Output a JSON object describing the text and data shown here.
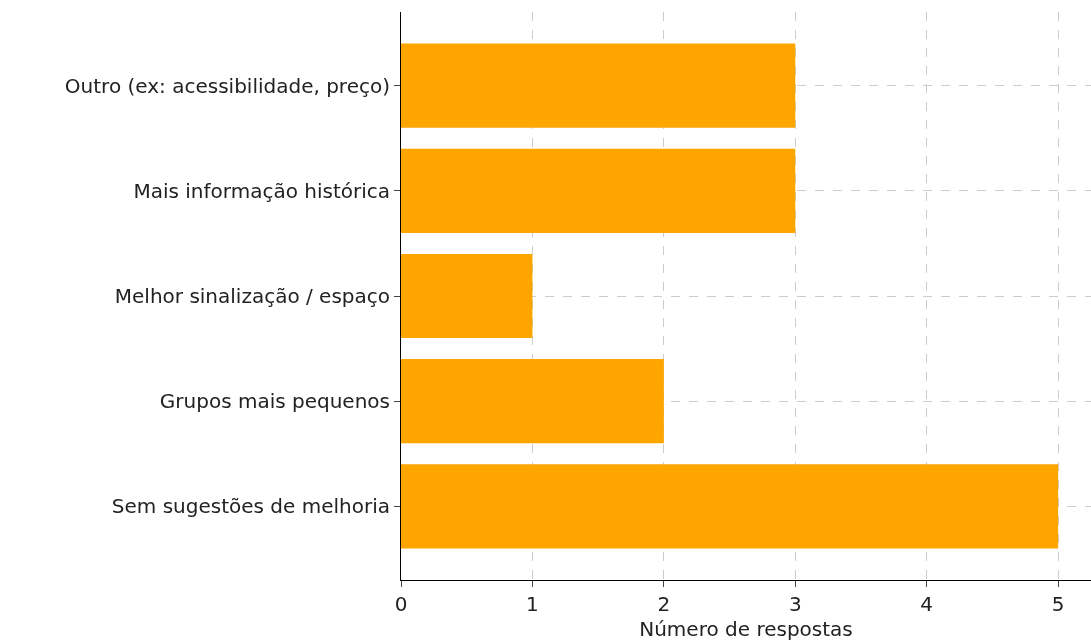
{
  "chart_data": {
    "type": "bar",
    "orientation": "horizontal",
    "xlabel": "Número de respostas",
    "categories": [
      "Outro (ex: acessibilidade, preço)",
      "Mais informação histórica",
      "Melhor sinalização / espaço",
      "Grupos mais pequenos",
      "Sem sugestões de melhoria"
    ],
    "values": [
      3,
      3,
      1,
      2,
      5
    ],
    "color": "#ffa500",
    "xlim": [
      0,
      5.25
    ],
    "xticks": [
      0,
      1,
      2,
      3,
      4,
      5
    ],
    "grid": true,
    "legend": false
  }
}
